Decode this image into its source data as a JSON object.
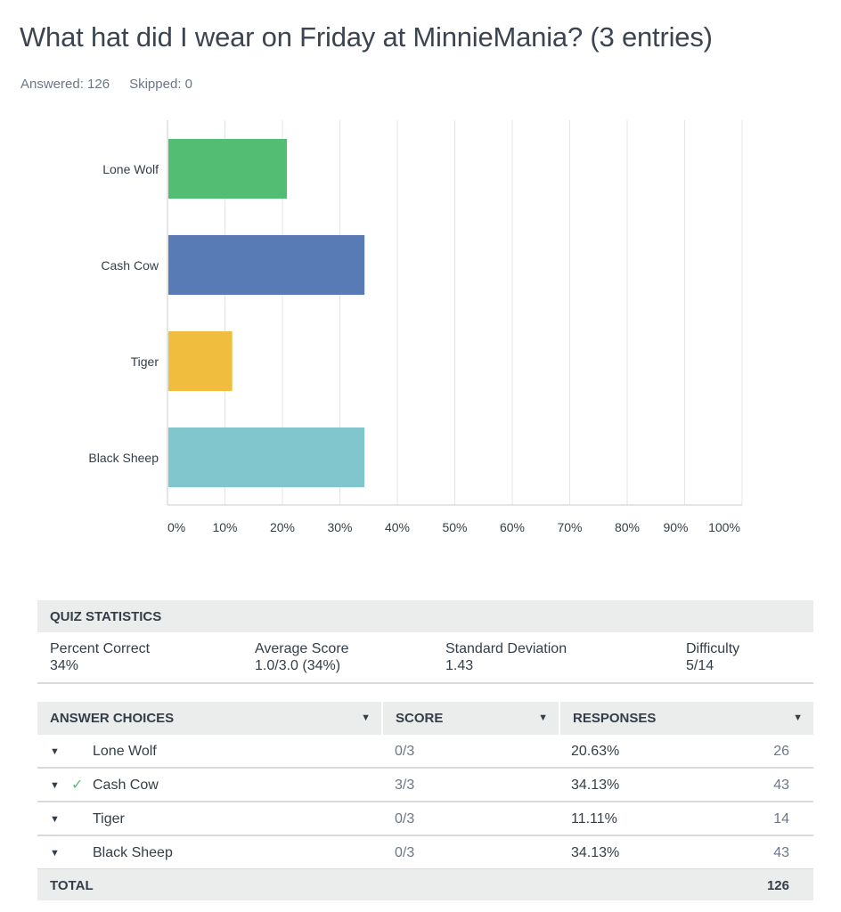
{
  "title": "What hat did I wear on Friday at MinnieMania? (3 entries)",
  "answered": "Answered: 126",
  "skipped": "Skipped: 0",
  "chart_data": {
    "type": "bar",
    "orientation": "horizontal",
    "categories": [
      "Lone Wolf",
      "Cash Cow",
      "Tiger",
      "Black Sheep"
    ],
    "values": [
      20.63,
      34.13,
      11.11,
      34.13
    ],
    "colors": [
      "#52bd73",
      "#587bb5",
      "#f0bd3f",
      "#80c6cc"
    ],
    "xlim": [
      0,
      100
    ],
    "xticks": [
      "0%",
      "10%",
      "20%",
      "30%",
      "40%",
      "50%",
      "60%",
      "70%",
      "80%",
      "90%",
      "100%"
    ],
    "grid": true
  },
  "quiz": {
    "header": "QUIZ STATISTICS",
    "stats": [
      {
        "label": "Percent Correct",
        "value": "34%"
      },
      {
        "label": "Average Score",
        "value": "1.0/3.0 (34%)"
      },
      {
        "label": "Standard Deviation",
        "value": "1.43"
      },
      {
        "label": "Difficulty",
        "value": "5/14"
      }
    ]
  },
  "table": {
    "headers": [
      "ANSWER CHOICES",
      "SCORE",
      "RESPONSES"
    ],
    "rows": [
      {
        "choice": "Lone Wolf",
        "correct": false,
        "score": "0/3",
        "percent": "20.63%",
        "count": "26"
      },
      {
        "choice": "Cash Cow",
        "correct": true,
        "score": "3/3",
        "percent": "34.13%",
        "count": "43"
      },
      {
        "choice": "Tiger",
        "correct": false,
        "score": "0/3",
        "percent": "11.11%",
        "count": "14"
      },
      {
        "choice": "Black Sheep",
        "correct": false,
        "score": "0/3",
        "percent": "34.13%",
        "count": "43"
      }
    ],
    "total_label": "TOTAL",
    "total": "126"
  }
}
